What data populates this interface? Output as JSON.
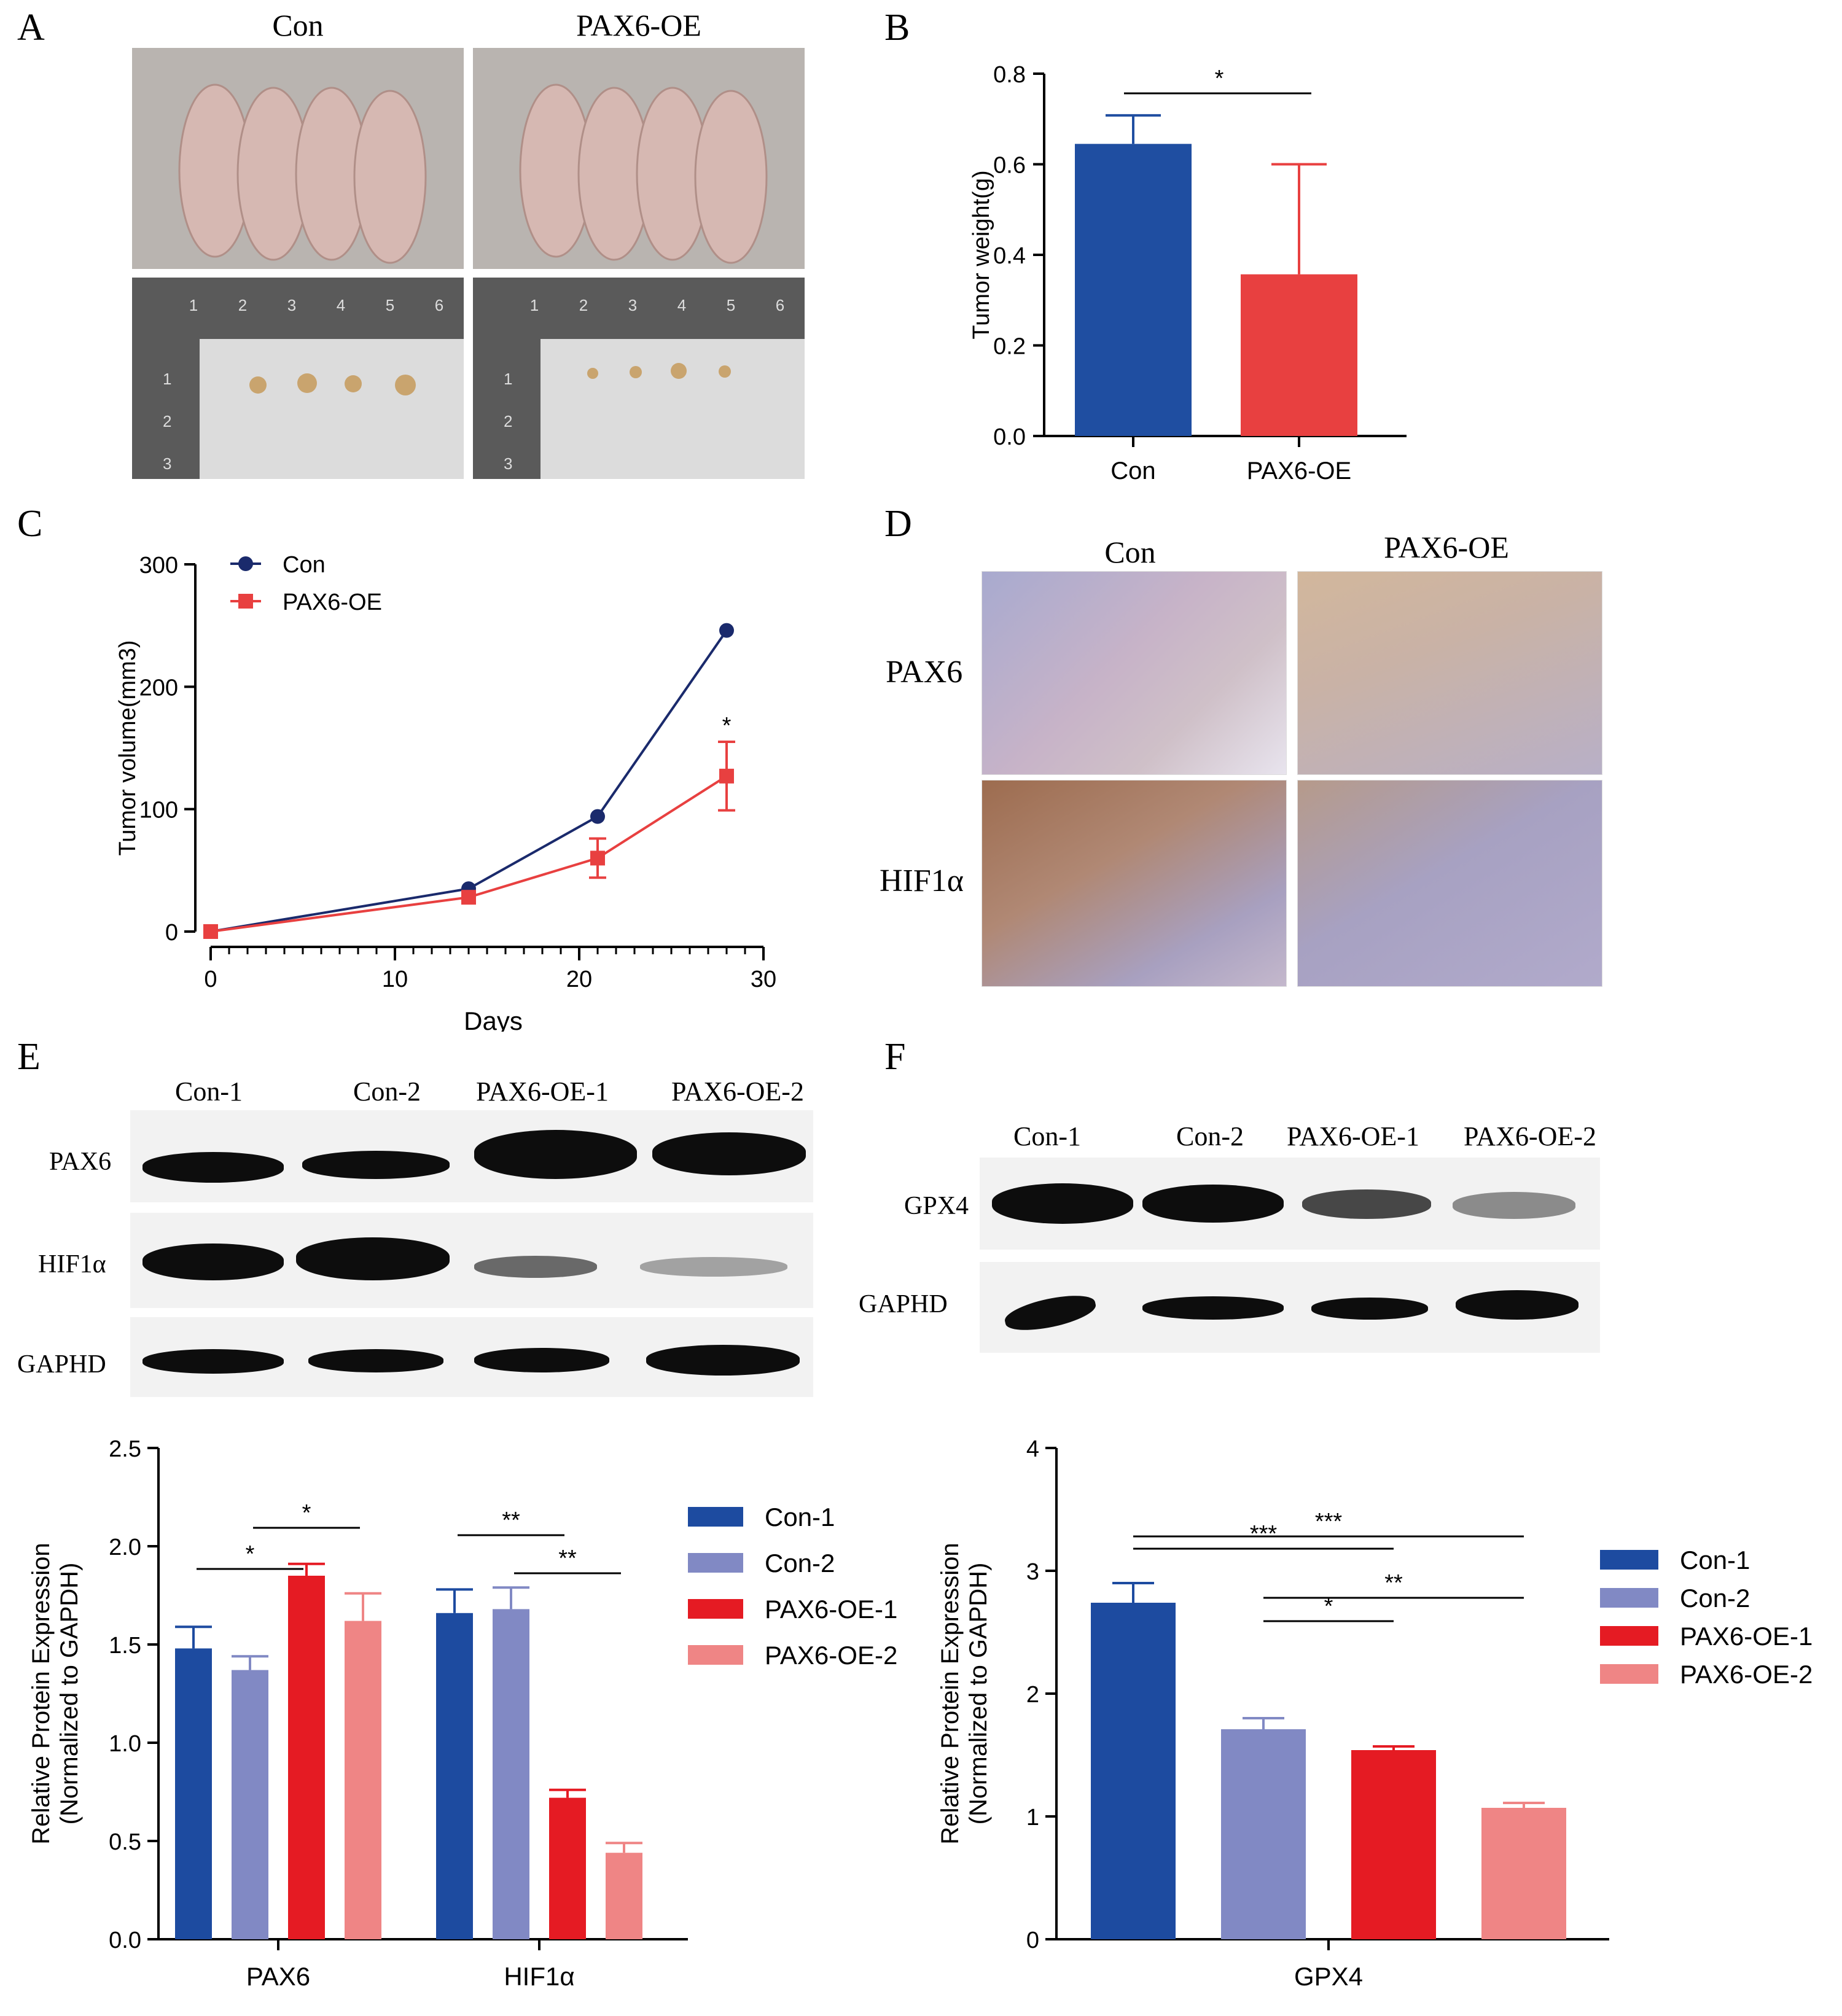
{
  "panels": {
    "A": "A",
    "B": "B",
    "C": "C",
    "D": "D",
    "E": "E",
    "F": "F"
  },
  "panel_a": {
    "headers": [
      "Con",
      "PAX6-OE"
    ],
    "ruler_top": [
      "1",
      "2",
      "3",
      "4",
      "5",
      "6"
    ],
    "ruler_side": [
      "1",
      "2",
      "3"
    ]
  },
  "panel_d": {
    "headers": [
      "Con",
      "PAX6-OE"
    ],
    "rows": [
      "PAX6",
      "HIF1α"
    ]
  },
  "panel_e_blot": {
    "lanes": [
      "Con-1",
      "Con-2",
      "PAX6-OE-1",
      "PAX6-OE-2"
    ],
    "rows": [
      "PAX6",
      "HIF1α",
      "GAPHD"
    ]
  },
  "panel_f_blot": {
    "lanes": [
      "Con-1",
      "Con-2",
      "PAX6-OE-1",
      "PAX6-OE-2"
    ],
    "rows": [
      "GPX4",
      "GAPHD"
    ]
  },
  "colors": {
    "con_blue": "#1f4ea1",
    "oe_red": "#e84040",
    "navy": "#1a2a6c",
    "con1": "#1d4ba0",
    "con2": "#8189c4",
    "oe1": "#e51b23",
    "oe2": "#ef8585"
  },
  "chart_data": [
    {
      "id": "B",
      "type": "bar",
      "categories": [
        "Con",
        "PAX6-OE"
      ],
      "values": [
        0.645,
        0.357
      ],
      "errors": [
        0.063,
        0.243
      ],
      "ylabel": "Tumor weight(g)",
      "xlabel": "",
      "ylim": [
        0,
        0.8
      ],
      "yticks": [
        "0.0",
        "0.2",
        "0.4",
        "0.6",
        "0.8"
      ],
      "significance": [
        {
          "from": 0,
          "to": 1,
          "label": "*"
        }
      ]
    },
    {
      "id": "C",
      "type": "line",
      "xlabel": "Days",
      "ylabel": "Tumor volume(mm3)",
      "xlim": [
        0,
        30
      ],
      "ylim": [
        0,
        300
      ],
      "xticks": [
        "0",
        "10",
        "20",
        "30"
      ],
      "yticks": [
        "0",
        "100",
        "200",
        "300"
      ],
      "legend": "top-left",
      "series": [
        {
          "name": "Con",
          "x": [
            0,
            14,
            21,
            28
          ],
          "values": [
            0,
            35,
            94,
            246
          ],
          "errors": [
            0,
            0,
            0,
            0
          ]
        },
        {
          "name": "PAX6-OE",
          "x": [
            0,
            14,
            21,
            28
          ],
          "values": [
            0,
            28,
            60,
            127
          ],
          "errors": [
            0,
            0,
            16,
            28
          ]
        }
      ],
      "annotations": [
        {
          "x": 28,
          "label": "*"
        }
      ]
    },
    {
      "id": "E",
      "type": "bar",
      "categories": [
        "PAX6",
        "HIF1α"
      ],
      "ylabel": "Relative Protein Expression (Normalized to GAPDH)",
      "ylabel_lines": [
        "Relative Protein Expression",
        "(Normalized to GAPDH)"
      ],
      "ylim": [
        0,
        2.5
      ],
      "yticks": [
        "0.0",
        "0.5",
        "1.0",
        "1.5",
        "2.0",
        "2.5"
      ],
      "legend": "right",
      "series": [
        {
          "name": "Con-1",
          "values": [
            1.48,
            1.66
          ],
          "errors": [
            0.11,
            0.12
          ]
        },
        {
          "name": "Con-2",
          "values": [
            1.37,
            1.68
          ],
          "errors": [
            0.07,
            0.11
          ]
        },
        {
          "name": "PAX6-OE-1",
          "values": [
            1.85,
            0.72
          ],
          "errors": [
            0.06,
            0.04
          ]
        },
        {
          "name": "PAX6-OE-2",
          "values": [
            1.62,
            0.44
          ],
          "errors": [
            0.14,
            0.05
          ]
        }
      ],
      "significance": [
        {
          "group": 0,
          "from": 0,
          "to": 2,
          "label": "*"
        },
        {
          "group": 0,
          "from": 1,
          "to": 3,
          "label": "*"
        },
        {
          "group": 1,
          "from": 0,
          "to": 2,
          "label": "**"
        },
        {
          "group": 1,
          "from": 1,
          "to": 3,
          "label": "**"
        }
      ]
    },
    {
      "id": "F",
      "type": "bar",
      "categories": [
        "GPX4"
      ],
      "ylabel": "Relative Protein Expression (Normalized to GAPDH)",
      "ylabel_lines": [
        "Relative Protein Expression",
        "(Normalized to GAPDH)"
      ],
      "ylim": [
        0,
        4
      ],
      "yticks": [
        "0",
        "1",
        "2",
        "3",
        "4"
      ],
      "legend": "right",
      "series": [
        {
          "name": "Con-1",
          "values": [
            2.74
          ],
          "errors": [
            0.16
          ]
        },
        {
          "name": "Con-2",
          "values": [
            1.71
          ],
          "errors": [
            0.09
          ]
        },
        {
          "name": "PAX6-OE-1",
          "values": [
            1.54
          ],
          "errors": [
            0.03
          ]
        },
        {
          "name": "PAX6-OE-2",
          "values": [
            1.07
          ],
          "errors": [
            0.04
          ]
        }
      ],
      "significance": [
        {
          "from": 0,
          "to": 3,
          "label": "***"
        },
        {
          "from": 0,
          "to": 2,
          "label": "***"
        },
        {
          "from": 1,
          "to": 3,
          "label": "**"
        },
        {
          "from": 1,
          "to": 2,
          "label": "*"
        }
      ]
    }
  ]
}
